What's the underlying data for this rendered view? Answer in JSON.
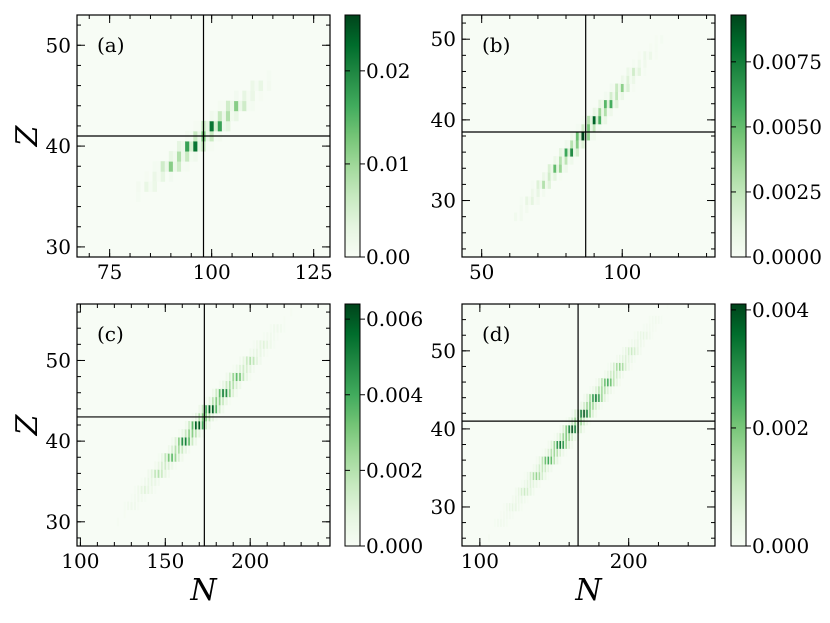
{
  "chart_data": [
    {
      "type": "heatmap",
      "panel_label": "(a)",
      "xlabel": "",
      "ylabel": "Z",
      "xlim": [
        67,
        129
      ],
      "ylim": [
        29,
        53
      ],
      "xticks": [
        75,
        100,
        125
      ],
      "yticks": [
        30,
        40,
        50
      ],
      "colorbar": {
        "range": [
          0,
          0.026
        ],
        "ticks": [
          0.0,
          0.01,
          0.02
        ],
        "tick_labels": [
          "0.00",
          "0.01",
          "0.02"
        ]
      },
      "crosshair": {
        "x": 98,
        "y": 41
      },
      "distribution": {
        "center_x": 98,
        "center_y": 41,
        "slope": 0.35,
        "spread_along": 6.5,
        "spread_across": 0.6
      }
    },
    {
      "type": "heatmap",
      "panel_label": "(b)",
      "xlabel": "",
      "ylabel": "",
      "xlim": [
        43,
        133
      ],
      "ylim": [
        23,
        53
      ],
      "xticks": [
        50,
        100
      ],
      "yticks": [
        30,
        40,
        50
      ],
      "colorbar": {
        "range": [
          0,
          0.0093
        ],
        "ticks": [
          0.0,
          0.0025,
          0.005,
          0.0075
        ],
        "tick_labels": [
          "0.0000",
          "0.0025",
          "0.0050",
          "0.0075"
        ]
      },
      "crosshair": {
        "x": 87,
        "y": 38.5
      },
      "distribution": {
        "center_x": 87,
        "center_y": 38.5,
        "slope": 0.42,
        "spread_along": 10,
        "spread_across": 0.7
      }
    },
    {
      "type": "heatmap",
      "panel_label": "(c)",
      "xlabel": "N",
      "ylabel": "Z",
      "xlim": [
        98,
        247
      ],
      "ylim": [
        27,
        57
      ],
      "xticks": [
        100,
        150,
        200
      ],
      "yticks": [
        30,
        40,
        50
      ],
      "colorbar": {
        "range": [
          0,
          0.0064
        ],
        "ticks": [
          0.0,
          0.002,
          0.004,
          0.006
        ],
        "tick_labels": [
          "0.000",
          "0.002",
          "0.004",
          "0.006"
        ]
      },
      "crosshair": {
        "x": 173,
        "y": 43
      },
      "distribution": {
        "center_x": 173,
        "center_y": 43,
        "slope": 0.25,
        "spread_along": 18,
        "spread_across": 0.75
      }
    },
    {
      "type": "heatmap",
      "panel_label": "(d)",
      "xlabel": "N",
      "ylabel": "",
      "xlim": [
        88,
        258
      ],
      "ylim": [
        25,
        56
      ],
      "xticks": [
        100,
        200
      ],
      "yticks": [
        30,
        40,
        50
      ],
      "colorbar": {
        "range": [
          0,
          0.0041
        ],
        "ticks": [
          0.0,
          0.002,
          0.004
        ],
        "tick_labels": [
          "0.000",
          "0.002",
          "0.004"
        ]
      },
      "crosshair": {
        "x": 166,
        "y": 41
      },
      "distribution": {
        "center_x": 166,
        "center_y": 41,
        "slope": 0.245,
        "spread_along": 21,
        "spread_across": 0.8
      }
    }
  ],
  "colormap": [
    "#f7fcf5",
    "#e5f5e0",
    "#c7e9c0",
    "#a1d99b",
    "#74c476",
    "#41ab5d",
    "#238b45",
    "#006d2c",
    "#00441b"
  ]
}
